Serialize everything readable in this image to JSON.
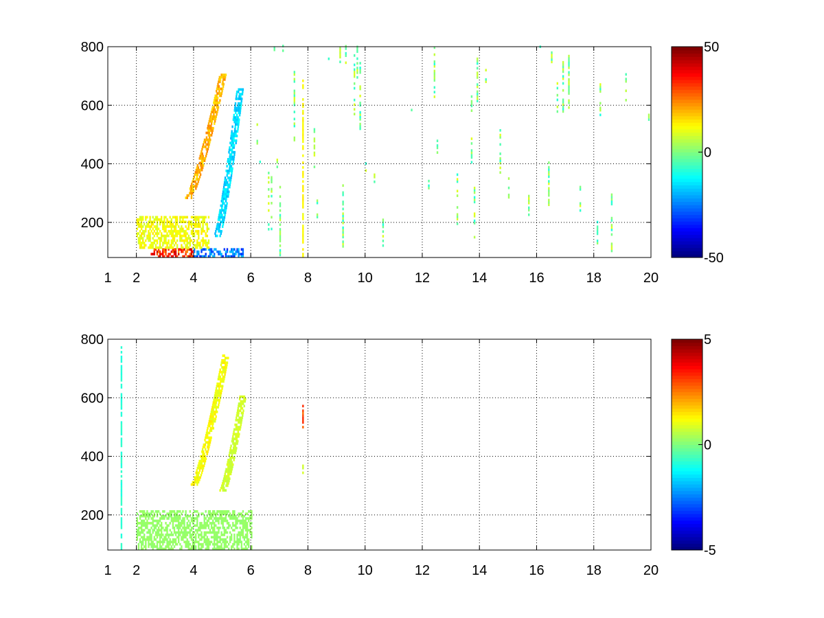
{
  "chart_data": [
    {
      "type": "heatmap",
      "title": "",
      "xlabel": "",
      "ylabel": "",
      "xlim": [
        1,
        20
      ],
      "ylim": [
        80,
        800
      ],
      "grid": true,
      "grid_style": "dotted",
      "x_ticks": [
        1,
        2,
        4,
        6,
        8,
        10,
        12,
        14,
        16,
        18,
        20
      ],
      "y_ticks": [
        200,
        400,
        600,
        800
      ],
      "colorbar": {
        "colormap": "jet",
        "min": -50,
        "max": 50,
        "ticks": [
          50,
          0,
          -50
        ]
      },
      "features": [
        {
          "description": "strong positive band near baseline",
          "x_range": [
            2.5,
            4.0
          ],
          "y_range": [
            80,
            110
          ],
          "value": 45
        },
        {
          "description": "strong negative band near baseline",
          "x_range": [
            4.0,
            5.7
          ],
          "y_range": [
            80,
            110
          ],
          "value": -35
        },
        {
          "description": "positive ridge curving upward",
          "x_start": 3.8,
          "x_end": 5.0,
          "y_start": 280,
          "y_end": 700,
          "value": 25
        },
        {
          "description": "negative ridge curving upward",
          "x_start": 4.8,
          "x_end": 5.6,
          "y_start": 150,
          "y_end": 650,
          "value": -20
        },
        {
          "description": "moderate positive band",
          "x_range": [
            2.0,
            4.5
          ],
          "y_range": [
            110,
            220
          ],
          "value": 15
        },
        {
          "description": "isolated vertical stripe",
          "x": 7.8,
          "y_range": [
            80,
            700
          ],
          "value": 15
        },
        {
          "description": "sparse scattered noise",
          "x_range": [
            6.0,
            20.0
          ],
          "y_range": [
            80,
            800
          ],
          "value_range": [
            -10,
            10
          ]
        }
      ]
    },
    {
      "type": "heatmap",
      "title": "",
      "xlabel": "",
      "ylabel": "",
      "xlim": [
        1,
        20
      ],
      "ylim": [
        80,
        800
      ],
      "grid": true,
      "grid_style": "dotted",
      "x_ticks": [
        1,
        2,
        4,
        6,
        8,
        10,
        12,
        14,
        16,
        18,
        20
      ],
      "y_ticks": [
        200,
        400,
        600,
        800
      ],
      "colorbar": {
        "colormap": "jet",
        "min": -5,
        "max": 5,
        "ticks": [
          5,
          0,
          -5
        ]
      },
      "features": [
        {
          "description": "low-level green band near baseline",
          "x_range": [
            2.0,
            6.0
          ],
          "y_range": [
            80,
            210
          ],
          "value": 0.3
        },
        {
          "description": "positive ridge curving upward",
          "x_start": 4.0,
          "x_end": 5.1,
          "y_start": 300,
          "y_end": 740,
          "value": 1.5
        },
        {
          "description": "second ridge",
          "x_start": 5.0,
          "x_end": 5.7,
          "y_start": 280,
          "y_end": 600,
          "value": 1.0
        },
        {
          "description": "isolated stripe",
          "x": 7.8,
          "y_range": [
            480,
            570
          ],
          "value": 3.5
        },
        {
          "description": "isolated stripe",
          "x": 7.8,
          "y_range": [
            340,
            370
          ],
          "value": 1.0
        },
        {
          "description": "thin vertical line",
          "x": 1.45,
          "y_range": [
            80,
            770
          ],
          "value": -1.0
        }
      ]
    }
  ]
}
